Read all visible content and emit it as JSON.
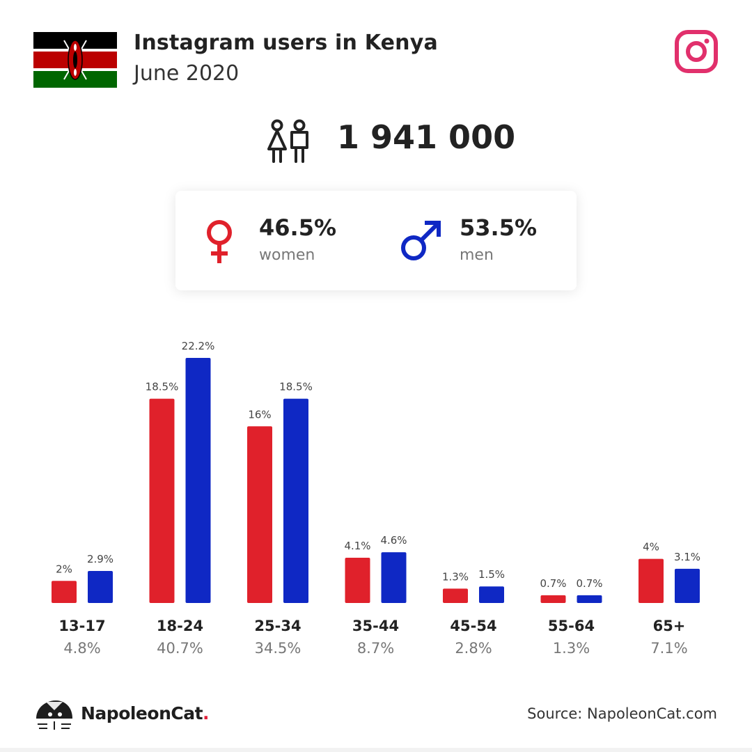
{
  "header": {
    "title": "Instagram users in Kenya",
    "subtitle": "June 2020",
    "flag_colors": {
      "black": "#000000",
      "red": "#bb0000",
      "green": "#006600",
      "white": "#ffffff"
    },
    "logo_icon": "instagram-icon",
    "logo_color": "#e1306c"
  },
  "total": {
    "icon": "people-icon",
    "value": "1 941 000"
  },
  "gender": {
    "women": {
      "percent": "46.5%",
      "label": "women",
      "icon": "female-symbol-icon",
      "color": "#e0212b"
    },
    "men": {
      "percent": "53.5%",
      "label": "men",
      "icon": "male-symbol-icon",
      "color": "#0f28c4"
    }
  },
  "chart_data": {
    "type": "bar",
    "categories": [
      "13-17",
      "18-24",
      "25-34",
      "35-44",
      "45-54",
      "55-64",
      "65+"
    ],
    "category_totals": [
      "4.8%",
      "40.7%",
      "34.5%",
      "8.7%",
      "2.8%",
      "1.3%",
      "7.1%"
    ],
    "series": [
      {
        "values": [
          2,
          18.5,
          16,
          4.1,
          1.3,
          0.7,
          4
        ],
        "labels": [
          "2%",
          "18.5%",
          "16%",
          "4.1%",
          "1.3%",
          "0.7%",
          "4%"
        ],
        "color": "#e0212b"
      },
      {
        "values": [
          2.9,
          22.2,
          18.5,
          4.6,
          1.5,
          0.7,
          3.1
        ],
        "labels": [
          "2.9%",
          "22.2%",
          "18.5%",
          "4.6%",
          "1.5%",
          "0.7%",
          "3.1%"
        ],
        "color": "#0f28c4"
      }
    ],
    "ylim": [
      0,
      22.2
    ],
    "grid": false,
    "legend": "none"
  },
  "footer": {
    "brand_icon": "napoleoncat-icon",
    "brand_name": "NapoleonCat",
    "brand_dot": ".",
    "source": "Source: NapoleonCat.com"
  }
}
